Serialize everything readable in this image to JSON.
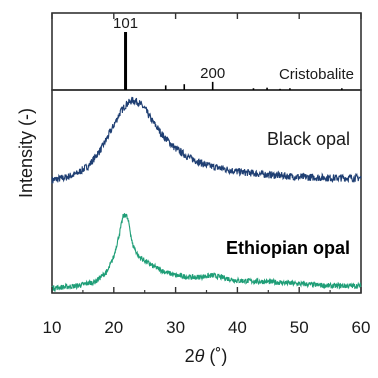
{
  "chart_data": {
    "type": "line",
    "xlabel_prefix": "2",
    "xlabel_symbol": "θ",
    "xlabel_unit": " (˚)",
    "ylabel": "Intensity (-)",
    "xlim": [
      10,
      60
    ],
    "xticks": [
      10,
      20,
      30,
      40,
      50,
      60
    ],
    "colors": {
      "black_opal": "#1f3f73",
      "ethiopian_opal": "#1f9e77",
      "reference": "#000000",
      "frame": "#333333"
    },
    "reference": {
      "name": "Cristobalite",
      "peaks": [
        {
          "x": 21.9,
          "rel_intensity": 100,
          "label": "101"
        },
        {
          "x": 28.4,
          "rel_intensity": 8
        },
        {
          "x": 31.4,
          "rel_intensity": 10
        },
        {
          "x": 36.0,
          "rel_intensity": 14,
          "label": "200"
        },
        {
          "x": 42.6,
          "rel_intensity": 3
        },
        {
          "x": 44.8,
          "rel_intensity": 4
        },
        {
          "x": 46.9,
          "rel_intensity": 2
        },
        {
          "x": 48.5,
          "rel_intensity": 3
        },
        {
          "x": 56.9,
          "rel_intensity": 3
        }
      ]
    },
    "series": [
      {
        "name": "Black opal",
        "bold": false,
        "x": [
          10,
          12,
          14,
          16,
          18,
          20,
          21,
          22,
          23,
          24,
          25,
          26,
          28,
          30,
          32,
          35,
          40,
          45,
          50,
          55,
          60
        ],
        "y": [
          0.1,
          0.12,
          0.16,
          0.24,
          0.4,
          0.62,
          0.74,
          0.82,
          0.86,
          0.84,
          0.78,
          0.68,
          0.52,
          0.4,
          0.32,
          0.24,
          0.18,
          0.15,
          0.13,
          0.12,
          0.12
        ]
      },
      {
        "name": "Ethiopian opal",
        "bold": true,
        "x": [
          10,
          14,
          17,
          19,
          20,
          21,
          21.5,
          22,
          22.5,
          23,
          24,
          26,
          28,
          30,
          33,
          36,
          40,
          45,
          50,
          55,
          60
        ],
        "y": [
          0.1,
          0.12,
          0.16,
          0.26,
          0.4,
          0.64,
          0.78,
          0.8,
          0.7,
          0.52,
          0.4,
          0.32,
          0.26,
          0.22,
          0.2,
          0.22,
          0.17,
          0.16,
          0.14,
          0.12,
          0.12
        ]
      }
    ]
  }
}
